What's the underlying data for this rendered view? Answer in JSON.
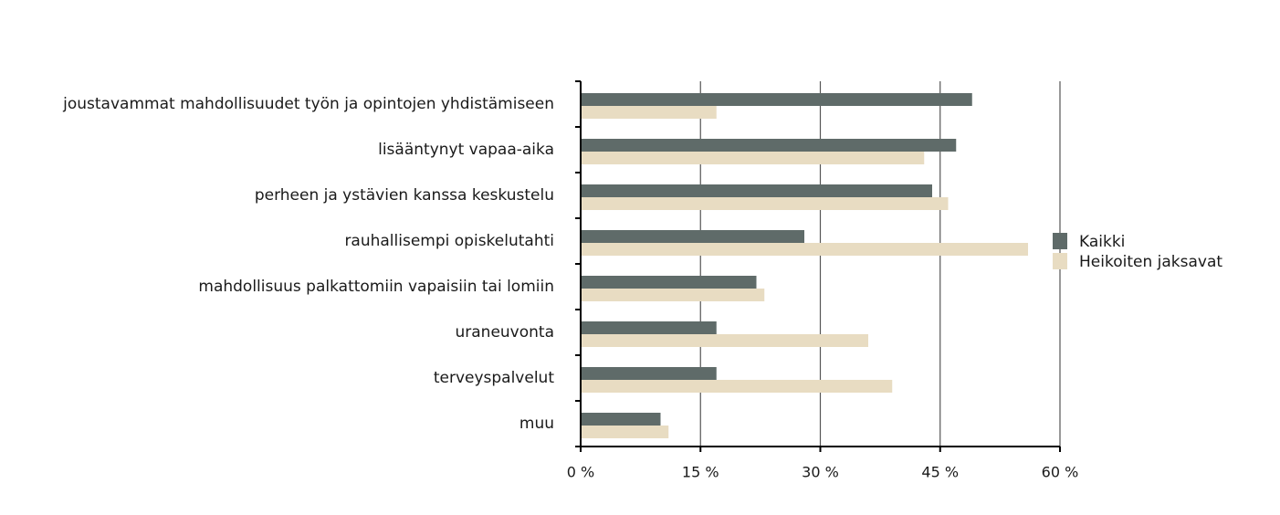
{
  "chart_data": {
    "type": "bar",
    "orientation": "horizontal",
    "categories": [
      "joustavammat mahdollisuudet työn ja opintojen yhdistämiseen",
      "lisääntynyt vapaa-aika",
      "perheen ja ystävien kanssa keskustelu",
      "rauhallisempi opiskelutahti",
      "mahdollisuus palkattomiin vapaisiin tai lomiin",
      "uraneuvonta",
      "terveyspalvelut",
      "muu"
    ],
    "series": [
      {
        "name": "Kaikki",
        "color": "#5f6b69",
        "values": [
          49,
          47,
          44,
          28,
          22,
          17,
          17,
          10
        ]
      },
      {
        "name": "Heikoiten jaksavat",
        "color": "#e8dcc2",
        "values": [
          17,
          43,
          46,
          56,
          23,
          36,
          39,
          11
        ]
      }
    ],
    "xlim": [
      0,
      60
    ],
    "xticks": [
      0,
      15,
      30,
      45,
      60
    ],
    "xtick_labels": [
      "0 %",
      "15 %",
      "30 %",
      "45 %",
      "60 %"
    ],
    "grid": true,
    "legend_position": "right",
    "title": "",
    "xlabel": "",
    "ylabel": ""
  }
}
